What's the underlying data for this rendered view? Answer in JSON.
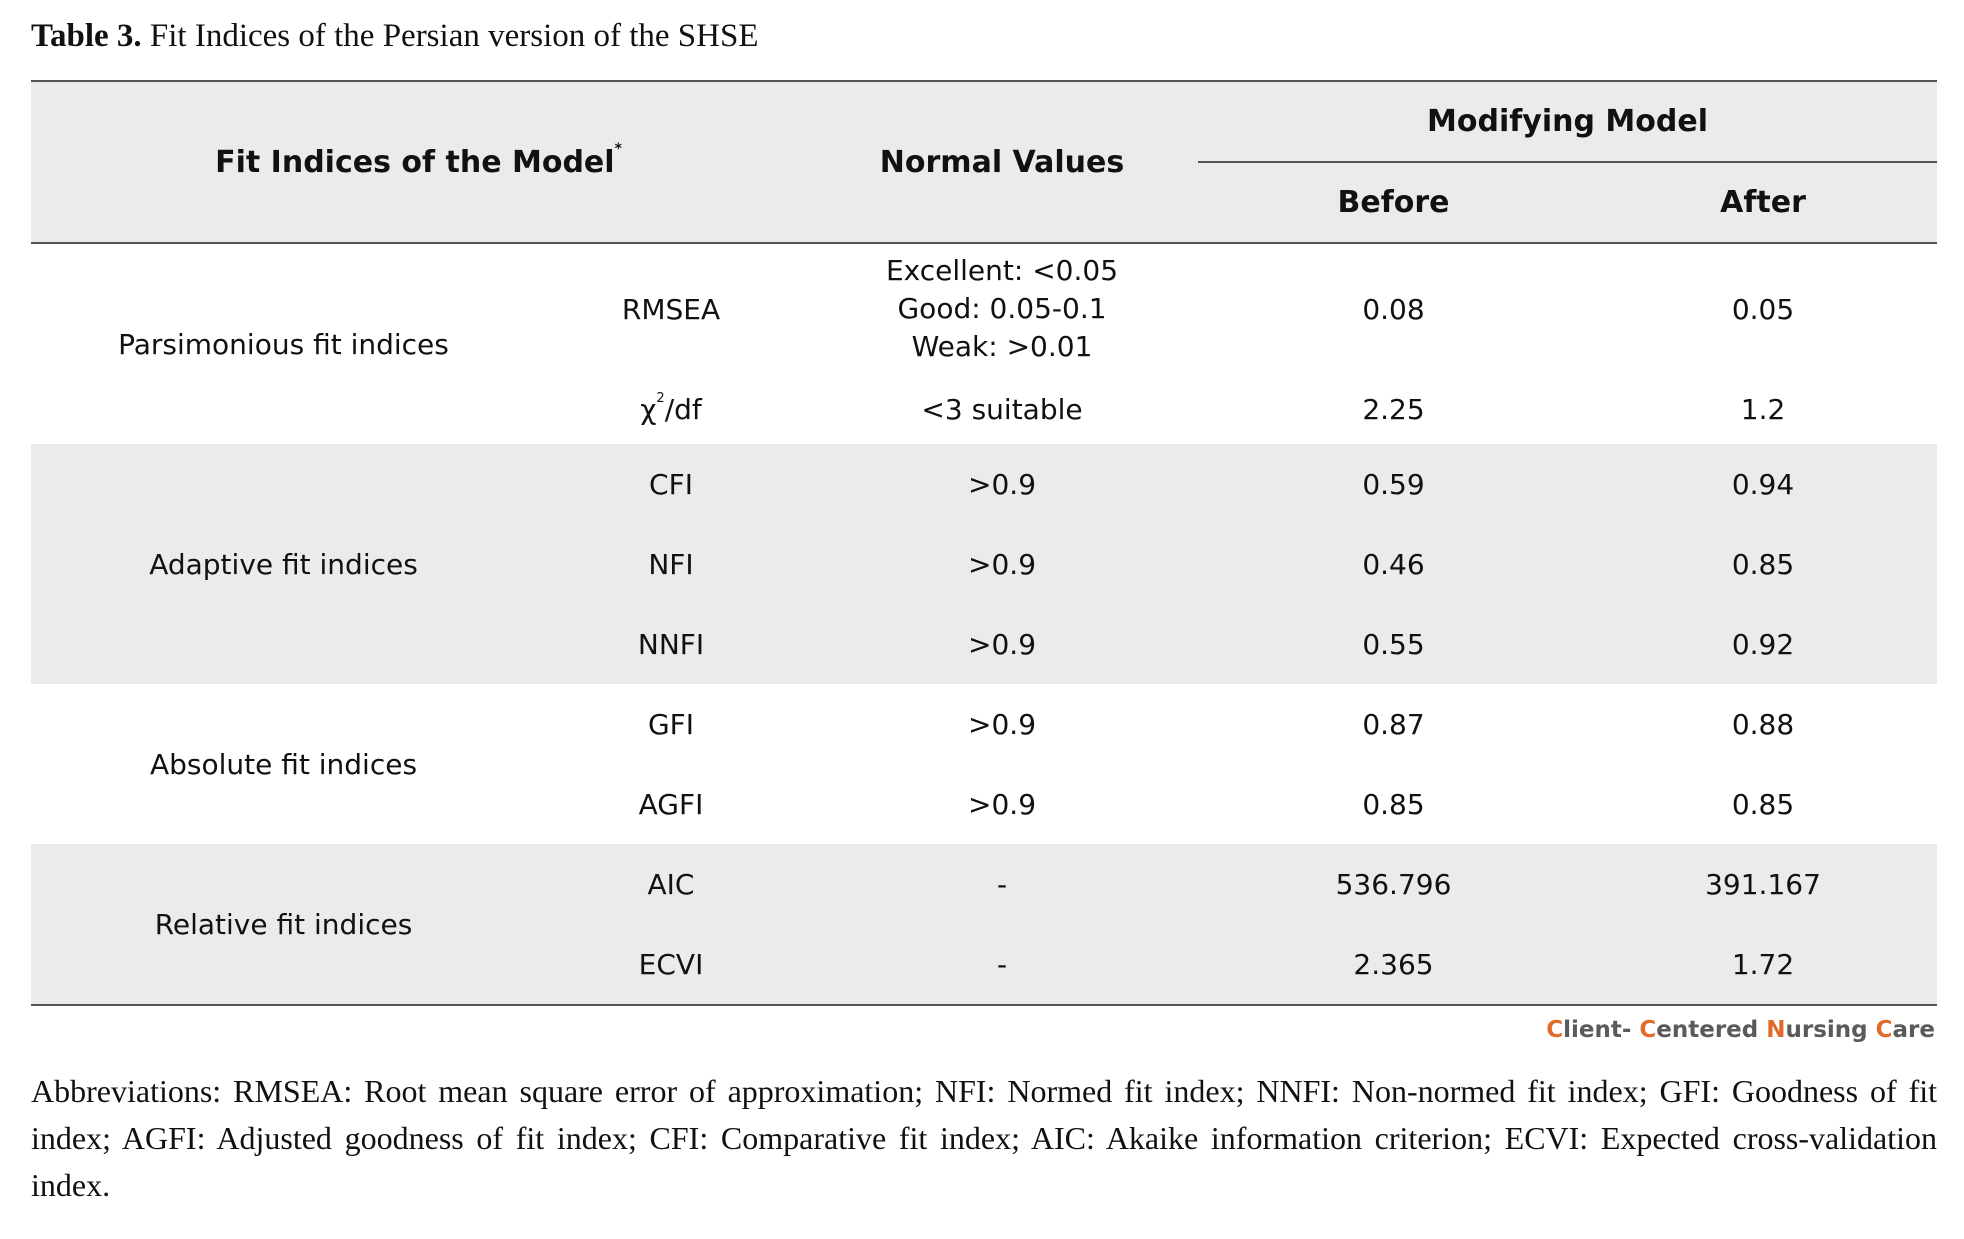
{
  "caption": {
    "label": "Table 3.",
    "text": "Fit Indices of the Persian version of the SHSE"
  },
  "header": {
    "fit_indices": "Fit Indices of the Model",
    "fit_indices_mark": "*",
    "normal_values": "Normal Values",
    "modifying_model": "Modifying Model",
    "before": "Before",
    "after": "After"
  },
  "groups": {
    "parsimonious": "Parsimonious fit indices",
    "adaptive": "Adaptive fit indices",
    "absolute": "Absolute fit indices",
    "relative": "Relative fit indices"
  },
  "rows": {
    "rmsea": {
      "index": "RMSEA",
      "normal": [
        "Excellent: <0.05",
        "Good: 0.05-0.1",
        "Weak: >0.01"
      ],
      "before": "0.08",
      "after": "0.05"
    },
    "chi": {
      "index_base": "χ",
      "index_sup": "2",
      "index_tail": "/df",
      "normal": "<3 suitable",
      "before": "2.25",
      "after": "1.2"
    },
    "cfi": {
      "index": "CFI",
      "normal": ">0.9",
      "before": "0.59",
      "after": "0.94"
    },
    "nfi": {
      "index": "NFI",
      "normal": ">0.9",
      "before": "0.46",
      "after": "0.85"
    },
    "nnfi": {
      "index": "NNFI",
      "normal": ">0.9",
      "before": "0.55",
      "after": "0.92"
    },
    "gfi": {
      "index": "GFI",
      "normal": ">0.9",
      "before": "0.87",
      "after": "0.88"
    },
    "agfi": {
      "index": "AGFI",
      "normal": ">0.9",
      "before": "0.85",
      "after": "0.85"
    },
    "aic": {
      "index": "AIC",
      "normal": "-",
      "before": "536.796",
      "after": "391.167"
    },
    "ecvi": {
      "index": "ECVI",
      "normal": "-",
      "before": "2.365",
      "after": "1.72"
    }
  },
  "brand": {
    "c1": "C",
    "t1": "lient- ",
    "c2": "C",
    "t2": "entered ",
    "c3": "N",
    "t3": "ursing ",
    "c4": "C",
    "t4": "are",
    "accent_color": "#e06b2b"
  },
  "abbreviations": "Abbreviations: RMSEA: Root mean square error of approximation; NFI: Normed fit index; NNFI: Non-normed fit index; GFI: Goodness of fit index; AGFI: Adjusted goodness of fit index; CFI: Comparative fit index; AIC: Akaike information criterion; ECVI: Expected cross-validation index."
}
